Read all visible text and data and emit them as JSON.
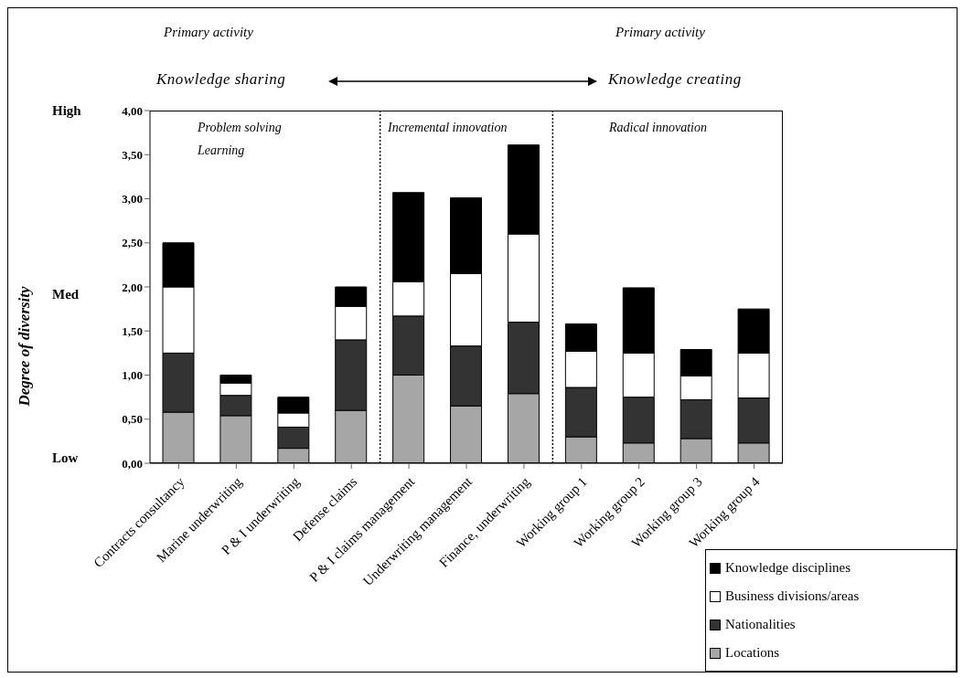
{
  "chart_data": {
    "type": "bar",
    "stacked": true,
    "ylabel": "Degree of diversity",
    "categories": [
      "Contracts consultancy",
      "Marine underwriting",
      "P & I underwriting",
      "Defense claims",
      "P & I claims management",
      "Underwriting management",
      "Finance, underwriting",
      "Working group 1",
      "Working group 2",
      "Working group 3",
      "Working group 4"
    ],
    "series": [
      {
        "name": "Locations",
        "color": "#a6a6a6",
        "values": [
          0.58,
          0.54,
          0.17,
          0.6,
          1.0,
          0.65,
          0.79,
          0.3,
          0.23,
          0.28,
          0.23
        ]
      },
      {
        "name": "Nationalities",
        "color": "#333333",
        "values": [
          0.67,
          0.23,
          0.24,
          0.8,
          0.67,
          0.68,
          0.81,
          0.56,
          0.52,
          0.44,
          0.51
        ]
      },
      {
        "name": "Business divisions/areas",
        "color": "#ffffff",
        "values": [
          0.75,
          0.14,
          0.16,
          0.38,
          0.39,
          0.82,
          1.0,
          0.41,
          0.5,
          0.27,
          0.51
        ]
      },
      {
        "name": "Knowledge disciplines",
        "color": "#000000",
        "values": [
          0.5,
          0.09,
          0.18,
          0.22,
          1.01,
          0.86,
          1.01,
          0.31,
          0.74,
          0.3,
          0.5
        ]
      }
    ],
    "ylim": [
      0,
      4
    ],
    "yticks": [
      {
        "value": 0,
        "label": "0,00"
      },
      {
        "value": 0.5,
        "label": "0,50"
      },
      {
        "value": 1,
        "label": "1,00"
      },
      {
        "value": 1.5,
        "label": "1,50"
      },
      {
        "value": 2,
        "label": "2,00"
      },
      {
        "value": 2.5,
        "label": "2,50"
      },
      {
        "value": 3,
        "label": "3,00"
      },
      {
        "value": 3.5,
        "label": "3,50"
      },
      {
        "value": 4,
        "label": "4,00"
      }
    ],
    "annotations": [
      "Primary activity",
      "Primary activity",
      "Knowledge sharing",
      "Knowledge creating",
      "Problem solving",
      "Learning",
      "Incremental innovation",
      "Radical innovation",
      "High",
      "Med",
      "Low"
    ],
    "legend": "bottom right",
    "grid": false
  }
}
